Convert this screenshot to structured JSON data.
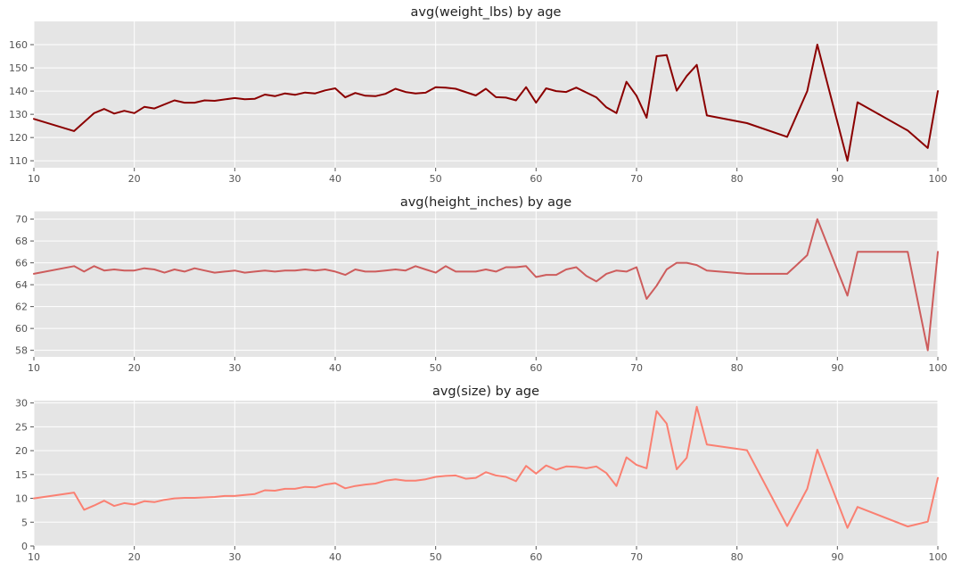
{
  "figure": {
    "background": "#ffffff",
    "panel_background": "#e5e5e5",
    "grid_color": "#ffffff"
  },
  "chart_data": [
    {
      "type": "line",
      "title": "avg(weight_lbs) by age",
      "xlabel": "",
      "ylabel": "",
      "color": "#8b0000",
      "xlim": [
        10,
        100
      ],
      "ylim": [
        107,
        170
      ],
      "xticks": [
        10,
        20,
        30,
        40,
        50,
        60,
        70,
        80,
        90,
        100
      ],
      "yticks": [
        110,
        120,
        130,
        140,
        150,
        160
      ],
      "grid": true,
      "series": [
        {
          "x": [
            10,
            14,
            16,
            17,
            18,
            19,
            20,
            21,
            22,
            24,
            25,
            26,
            27,
            28,
            30,
            31,
            32,
            33,
            34,
            35,
            36,
            37,
            38,
            39,
            40,
            41,
            42,
            43,
            44,
            45,
            46,
            47,
            48,
            49,
            50,
            51,
            52,
            54,
            55,
            56,
            57,
            58,
            59,
            60,
            61,
            62,
            63,
            64,
            66,
            67,
            68,
            69,
            70,
            71,
            72,
            73,
            74,
            75,
            76,
            77,
            81,
            85,
            87,
            88,
            91,
            92,
            97,
            99,
            100
          ],
          "y": [
            128,
            122.8,
            130.5,
            132.3,
            130.3,
            131.5,
            130.5,
            133.2,
            132.5,
            136,
            135,
            135,
            136,
            135.8,
            137,
            136.5,
            136.7,
            138.5,
            137.8,
            139,
            138.4,
            139.4,
            139,
            140.3,
            141.2,
            137.3,
            139.2,
            138,
            137.8,
            138.8,
            141,
            139.6,
            139,
            139.3,
            141.7,
            141.5,
            141,
            138.1,
            141,
            137.4,
            137.2,
            136,
            141.7,
            135,
            141.2,
            140,
            139.6,
            141.5,
            137.3,
            133,
            130.5,
            144,
            138,
            128.5,
            155,
            155.5,
            140.2,
            146.5,
            151.3,
            129.5,
            126.2,
            120.3,
            140,
            160,
            110,
            135.2,
            123,
            115.5,
            140
          ]
        }
      ]
    },
    {
      "type": "line",
      "title": "avg(height_inches) by age",
      "xlabel": "",
      "ylabel": "",
      "color": "#cd5c5c",
      "xlim": [
        10,
        100
      ],
      "ylim": [
        57.4,
        70.7
      ],
      "xticks": [
        10,
        20,
        30,
        40,
        50,
        60,
        70,
        80,
        90,
        100
      ],
      "yticks": [
        58,
        60,
        62,
        64,
        66,
        68,
        70
      ],
      "grid": true,
      "series": [
        {
          "x": [
            10,
            14,
            15,
            16,
            17,
            18,
            19,
            20,
            21,
            22,
            23,
            24,
            25,
            26,
            27,
            28,
            29,
            30,
            31,
            32,
            33,
            34,
            35,
            36,
            37,
            38,
            39,
            40,
            41,
            42,
            43,
            44,
            45,
            46,
            47,
            48,
            49,
            50,
            51,
            52,
            53,
            54,
            55,
            56,
            57,
            58,
            59,
            60,
            61,
            62,
            63,
            64,
            65,
            66,
            67,
            68,
            69,
            70,
            71,
            72,
            73,
            74,
            75,
            76,
            77,
            81,
            85,
            87,
            88,
            91,
            92,
            97,
            99,
            100
          ],
          "y": [
            65,
            65.7,
            65.2,
            65.7,
            65.3,
            65.4,
            65.3,
            65.3,
            65.5,
            65.4,
            65.1,
            65.4,
            65.2,
            65.5,
            65.3,
            65.1,
            65.2,
            65.3,
            65.1,
            65.2,
            65.3,
            65.2,
            65.3,
            65.3,
            65.4,
            65.3,
            65.4,
            65.2,
            64.9,
            65.4,
            65.2,
            65.2,
            65.3,
            65.4,
            65.3,
            65.7,
            65.4,
            65.1,
            65.7,
            65.2,
            65.2,
            65.2,
            65.4,
            65.2,
            65.6,
            65.6,
            65.7,
            64.7,
            64.9,
            64.9,
            65.4,
            65.6,
            64.8,
            64.3,
            65,
            65.3,
            65.2,
            65.6,
            62.7,
            63.9,
            65.4,
            66,
            66,
            65.8,
            65.3,
            65,
            65,
            66.7,
            70,
            63,
            67,
            67,
            58,
            67
          ]
        }
      ]
    },
    {
      "type": "line",
      "title": "avg(size) by age",
      "xlabel": "",
      "ylabel": "",
      "color": "#fa8072",
      "xlim": [
        10,
        100
      ],
      "ylim": [
        0,
        30.5
      ],
      "xticks": [
        10,
        20,
        30,
        40,
        50,
        60,
        70,
        80,
        90,
        100
      ],
      "yticks": [
        0,
        5,
        10,
        15,
        20,
        25,
        30
      ],
      "grid": true,
      "series": [
        {
          "x": [
            10,
            14,
            15,
            16,
            17,
            18,
            19,
            20,
            21,
            22,
            23,
            24,
            25,
            26,
            27,
            28,
            29,
            30,
            31,
            32,
            33,
            34,
            35,
            36,
            37,
            38,
            39,
            40,
            41,
            42,
            43,
            44,
            45,
            46,
            47,
            48,
            49,
            50,
            51,
            52,
            53,
            54,
            55,
            56,
            57,
            58,
            59,
            60,
            61,
            62,
            63,
            64,
            65,
            66,
            67,
            68,
            69,
            70,
            71,
            72,
            73,
            74,
            75,
            76,
            77,
            81,
            85,
            87,
            88,
            91,
            92,
            97,
            99,
            100
          ],
          "y": [
            10,
            11.2,
            7.6,
            8.5,
            9.5,
            8.4,
            9,
            8.7,
            9.4,
            9.2,
            9.7,
            10,
            10.1,
            10.1,
            10.2,
            10.3,
            10.5,
            10.5,
            10.7,
            10.9,
            11.7,
            11.6,
            12,
            12,
            12.4,
            12.3,
            12.9,
            13.2,
            12.1,
            12.6,
            12.9,
            13.1,
            13.7,
            14,
            13.7,
            13.7,
            14,
            14.5,
            14.7,
            14.8,
            14.1,
            14.3,
            15.5,
            14.8,
            14.5,
            13.6,
            16.8,
            15.2,
            16.9,
            16,
            16.7,
            16.6,
            16.3,
            16.7,
            15.3,
            12.6,
            18.6,
            17,
            16.3,
            28.3,
            25.7,
            16.1,
            18.5,
            29.2,
            21.3,
            20.1,
            4.2,
            12,
            20.2,
            3.8,
            8.2,
            4.1,
            5.1,
            14.3
          ]
        }
      ]
    }
  ]
}
